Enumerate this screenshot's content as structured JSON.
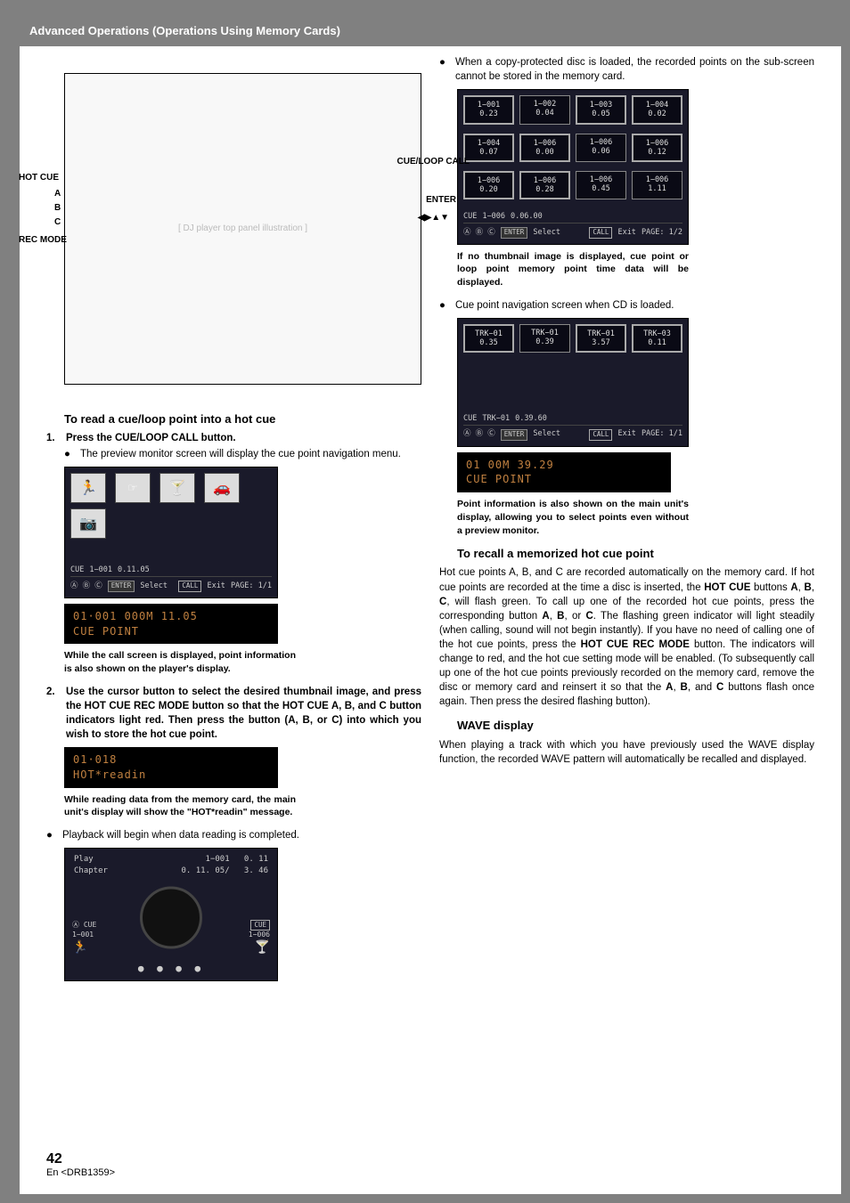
{
  "header": {
    "title": "Advanced Operations (Operations Using Memory Cards)"
  },
  "diagram": {
    "left_labels": {
      "hotcue": "HOT CUE",
      "a": "A",
      "b": "B",
      "c": "C",
      "recmode": "REC MODE"
    },
    "right_labels": {
      "cueloop": "CUE/LOOP CALL",
      "enter": "ENTER",
      "arrows": "◀▶▲▼"
    }
  },
  "left_col": {
    "heading1": "To read a cue/loop point into a hot cue",
    "step1_num": "1.",
    "step1_text": "Press the CUE/LOOP CALL button.",
    "step1_bullet": "The preview monitor screen will display the cue point navigation menu.",
    "nav_screen": {
      "icons": [
        "🏃",
        "☞",
        "🍸",
        "🚗"
      ],
      "camera": "📷",
      "status_cue": "CUE",
      "status_track": "1−001",
      "status_time": "0.11.05",
      "abc": "Ⓐ Ⓑ Ⓒ",
      "enter": "ENTER",
      "select": "Select",
      "call": "CALL",
      "exit": "Exit",
      "page": "PAGE: 1/1"
    },
    "lcd1_line1": "01·001        000M 11.05",
    "lcd1_line2": "                CUE POINT",
    "caption1": "While the call screen is displayed, point information is also shown on the player's display.",
    "step2_num": "2.",
    "step2_text": "Use the cursor button to select the desired thumbnail image, and press the HOT CUE REC MODE button so that the HOT CUE A, B, and C button indicators light red. Then press the button (A, B, or C) into which you wish to store the hot cue point.",
    "lcd2_line1": "01·018",
    "lcd2_line2": "            HOT*readin",
    "caption2": "While reading data from the memory card, the main unit's display will show the \"HOT*readin\" message.",
    "bullet2": "Playback will begin when data reading is completed.",
    "jog_screen": {
      "play": "Play",
      "chapter": "Chapter",
      "t1": "1−001",
      "t2": "0. 11",
      "t3": "0. 11. 05/",
      "t4": "3. 46",
      "left_cue": "Ⓐ CUE",
      "left_track": "1−001",
      "left_icon": "🏃",
      "right_cue": "CUE",
      "right_track": "1−006",
      "right_icon": "🍸",
      "dots": "● ● ● ●"
    }
  },
  "right_col": {
    "bullet_copy": "When a copy-protected disc is loaded, the recorded points on the sub-screen cannot be stored in the memory card.",
    "thumb_screen": {
      "rows": [
        [
          {
            "t": "1−001",
            "v": "0.23",
            "hl": true
          },
          {
            "t": "1−002",
            "v": "0.04"
          },
          {
            "t": "1−003",
            "v": "0.05",
            "hl": true
          },
          {
            "t": "1−004",
            "v": "0.02",
            "hl": true
          }
        ],
        [
          {
            "t": "1−004",
            "v": "0.07",
            "hl": true
          },
          {
            "t": "1−006",
            "v": "0.00",
            "hl": true
          },
          {
            "t": "1−006",
            "v": "0.06"
          },
          {
            "t": "1−006",
            "v": "0.12",
            "hl": true
          }
        ],
        [
          {
            "t": "1−006",
            "v": "0.20",
            "hl": true
          },
          {
            "t": "1−006",
            "v": "0.28",
            "hl": true
          },
          {
            "t": "1−006",
            "v": "0.45"
          },
          {
            "t": "1−006",
            "v": "1.11"
          }
        ]
      ],
      "status_cue": "CUE",
      "status_track": "1−006",
      "status_time": "0.06.00",
      "abc": "Ⓐ Ⓑ Ⓒ",
      "enter": "ENTER",
      "select": "Select",
      "call": "CALL",
      "exit": "Exit",
      "page": "PAGE: 1/2"
    },
    "caption_thumb": "If no thumbnail image is displayed, cue point or loop point memory point time data will be displayed.",
    "bullet_cd": "Cue point navigation screen when CD is loaded.",
    "cd_screen": {
      "rows": [
        [
          {
            "t": "TRK−01",
            "v": "0.35",
            "hl": true
          },
          {
            "t": "TRK−01",
            "v": "0.39"
          },
          {
            "t": "TRK−01",
            "v": "3.57",
            "hl": true
          },
          {
            "t": "TRK−03",
            "v": "0.11",
            "hl": true
          }
        ]
      ],
      "status_cue": "CUE",
      "status_track": "TRK−01",
      "status_time": "0.39.60",
      "abc": "Ⓐ Ⓑ Ⓒ",
      "enter": "ENTER",
      "select": "Select",
      "call": "CALL",
      "exit": "Exit",
      "page": "PAGE: 1/1"
    },
    "lcd3_line1": "01            00M 39.29",
    "lcd3_line2": "                CUE POINT",
    "caption_lcd3": "Point information is also shown on the main unit's display, allowing you to select points even without a preview monitor.",
    "heading_recall": "To recall a memorized hot cue point",
    "recall_body": "Hot cue points A, B, and C are recorded automatically on the memory card. If hot cue points are recorded at the time a disc is inserted, the HOT CUE buttons A, B, C, will flash green. To call up one of the recorded hot cue points, press the corresponding button A, B, or C. The flashing green indicator will light steadily (when calling, sound will not begin instantly). If you have no need of calling one of the hot cue points, press the HOT CUE REC MODE button. The indicators will change to red, and the hot cue setting mode will be enabled. (To subsequently call up one of the hot cue points previously recorded on the memory card, remove the disc or memory card and reinsert it so that the A, B, and C buttons flash once again. Then press the desired flashing button).",
    "heading_wave": "WAVE display",
    "wave_body": "When playing a track with which you have previously used the WAVE display function, the recorded WAVE pattern will automatically be recalled and displayed."
  },
  "footer": {
    "page": "42",
    "ref": "En <DRB1359>"
  }
}
